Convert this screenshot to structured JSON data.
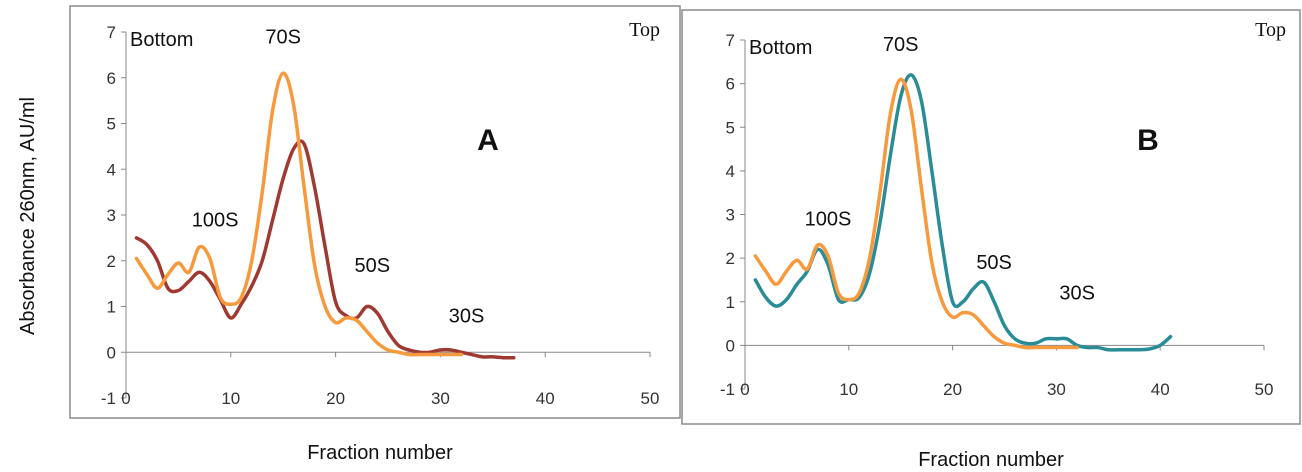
{
  "y_axis_title": "Absorbance 260nm,  AU/ml",
  "chart_data": [
    {
      "type": "line",
      "panel_letter": "A",
      "corner_labels": {
        "left": "Bottom",
        "right": "Top"
      },
      "xlabel": "Fraction number",
      "xlim": [
        0,
        50
      ],
      "ylim": [
        -1,
        7
      ],
      "xticks": [
        0,
        10,
        20,
        30,
        40,
        50
      ],
      "yticks": [
        -1,
        0,
        1,
        2,
        3,
        4,
        5,
        6,
        7
      ],
      "grid": false,
      "annotations": [
        {
          "text": "70S",
          "x": 15,
          "y": 6.75
        },
        {
          "text": "100S",
          "x": 8.5,
          "y": 2.75
        },
        {
          "text": "50S",
          "x": 23.5,
          "y": 1.75
        },
        {
          "text": "30S",
          "x": 32.5,
          "y": 0.65
        }
      ],
      "series": [
        {
          "color": "#9e3a32",
          "points": [
            [
              1,
              2.5
            ],
            [
              2,
              2.35
            ],
            [
              3,
              2.0
            ],
            [
              4,
              1.4
            ],
            [
              5,
              1.35
            ],
            [
              6,
              1.55
            ],
            [
              7,
              1.75
            ],
            [
              8,
              1.55
            ],
            [
              9,
              1.15
            ],
            [
              10,
              0.75
            ],
            [
              11,
              1.05
            ],
            [
              12,
              1.45
            ],
            [
              13,
              2.0
            ],
            [
              14,
              2.9
            ],
            [
              15,
              3.8
            ],
            [
              16,
              4.45
            ],
            [
              17,
              4.55
            ],
            [
              18,
              3.6
            ],
            [
              19,
              2.3
            ],
            [
              20,
              1.1
            ],
            [
              21,
              0.8
            ],
            [
              22,
              0.75
            ],
            [
              23,
              1.0
            ],
            [
              24,
              0.85
            ],
            [
              25,
              0.45
            ],
            [
              26,
              0.15
            ],
            [
              27,
              0.05
            ],
            [
              28,
              0.0
            ],
            [
              29,
              0.0
            ],
            [
              30,
              0.05
            ],
            [
              31,
              0.05
            ],
            [
              32,
              0.0
            ],
            [
              33,
              -0.05
            ],
            [
              34,
              -0.1
            ],
            [
              35,
              -0.1
            ],
            [
              36,
              -0.12
            ],
            [
              37,
              -0.12
            ]
          ]
        },
        {
          "color": "#f79a3e",
          "points": [
            [
              1,
              2.05
            ],
            [
              2,
              1.7
            ],
            [
              3,
              1.4
            ],
            [
              4,
              1.7
            ],
            [
              5,
              1.95
            ],
            [
              6,
              1.75
            ],
            [
              7,
              2.3
            ],
            [
              8,
              2.05
            ],
            [
              9,
              1.2
            ],
            [
              10,
              1.05
            ],
            [
              11,
              1.2
            ],
            [
              12,
              2.0
            ],
            [
              13,
              3.5
            ],
            [
              14,
              5.3
            ],
            [
              15,
              6.1
            ],
            [
              16,
              5.4
            ],
            [
              17,
              3.6
            ],
            [
              18,
              1.9
            ],
            [
              19,
              1.0
            ],
            [
              20,
              0.65
            ],
            [
              21,
              0.75
            ],
            [
              22,
              0.7
            ],
            [
              23,
              0.45
            ],
            [
              24,
              0.2
            ],
            [
              25,
              0.05
            ],
            [
              26,
              0.0
            ],
            [
              27,
              -0.05
            ],
            [
              28,
              -0.05
            ],
            [
              29,
              -0.05
            ],
            [
              30,
              -0.05
            ],
            [
              31,
              -0.05
            ],
            [
              32,
              -0.05
            ]
          ]
        }
      ]
    },
    {
      "type": "line",
      "panel_letter": "B",
      "corner_labels": {
        "left": "Bottom",
        "right": "Top"
      },
      "xlabel": "Fraction number",
      "xlim": [
        0,
        50
      ],
      "ylim": [
        -1,
        7
      ],
      "xticks": [
        0,
        10,
        20,
        30,
        40,
        50
      ],
      "yticks": [
        -1,
        0,
        1,
        2,
        3,
        4,
        5,
        6,
        7
      ],
      "grid": false,
      "annotations": [
        {
          "text": "70S",
          "x": 15,
          "y": 6.75
        },
        {
          "text": "100S",
          "x": 8,
          "y": 2.75
        },
        {
          "text": "50S",
          "x": 24,
          "y": 1.75
        },
        {
          "text": "30S",
          "x": 32,
          "y": 1.05
        }
      ],
      "series": [
        {
          "color": "#2a8c96",
          "points": [
            [
              1,
              1.5
            ],
            [
              2,
              1.1
            ],
            [
              3,
              0.9
            ],
            [
              4,
              1.05
            ],
            [
              5,
              1.4
            ],
            [
              6,
              1.7
            ],
            [
              7,
              2.2
            ],
            [
              8,
              1.85
            ],
            [
              9,
              1.05
            ],
            [
              10,
              1.05
            ],
            [
              11,
              1.1
            ],
            [
              12,
              1.65
            ],
            [
              13,
              2.8
            ],
            [
              14,
              4.35
            ],
            [
              15,
              5.7
            ],
            [
              16,
              6.2
            ],
            [
              17,
              5.6
            ],
            [
              18,
              4.0
            ],
            [
              19,
              2.3
            ],
            [
              20,
              1.0
            ],
            [
              21,
              1.0
            ],
            [
              22,
              1.3
            ],
            [
              23,
              1.45
            ],
            [
              24,
              1.0
            ],
            [
              25,
              0.45
            ],
            [
              26,
              0.15
            ],
            [
              27,
              0.05
            ],
            [
              28,
              0.05
            ],
            [
              29,
              0.15
            ],
            [
              30,
              0.15
            ],
            [
              31,
              0.15
            ],
            [
              32,
              0.0
            ],
            [
              33,
              -0.05
            ],
            [
              34,
              -0.05
            ],
            [
              35,
              -0.1
            ],
            [
              36,
              -0.1
            ],
            [
              37,
              -0.1
            ],
            [
              38,
              -0.1
            ],
            [
              39,
              -0.08
            ],
            [
              40,
              0.0
            ],
            [
              41,
              0.2
            ]
          ]
        },
        {
          "color": "#f79a3e",
          "points": [
            [
              1,
              2.05
            ],
            [
              2,
              1.7
            ],
            [
              3,
              1.4
            ],
            [
              4,
              1.7
            ],
            [
              5,
              1.95
            ],
            [
              6,
              1.75
            ],
            [
              7,
              2.3
            ],
            [
              8,
              2.05
            ],
            [
              9,
              1.2
            ],
            [
              10,
              1.05
            ],
            [
              11,
              1.2
            ],
            [
              12,
              2.0
            ],
            [
              13,
              3.5
            ],
            [
              14,
              5.3
            ],
            [
              15,
              6.1
            ],
            [
              16,
              5.4
            ],
            [
              17,
              3.6
            ],
            [
              18,
              1.9
            ],
            [
              19,
              1.0
            ],
            [
              20,
              0.65
            ],
            [
              21,
              0.75
            ],
            [
              22,
              0.7
            ],
            [
              23,
              0.45
            ],
            [
              24,
              0.2
            ],
            [
              25,
              0.05
            ],
            [
              26,
              0.0
            ],
            [
              27,
              -0.05
            ],
            [
              28,
              -0.05
            ],
            [
              29,
              -0.05
            ],
            [
              30,
              -0.05
            ],
            [
              31,
              -0.05
            ],
            [
              32,
              -0.05
            ]
          ]
        }
      ]
    }
  ]
}
